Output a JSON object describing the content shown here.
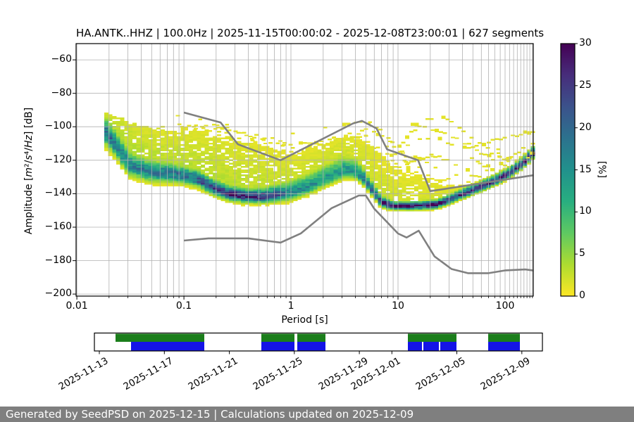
{
  "title": "HA.ANTK..HHZ | 100.0Hz | 2025-11-15T00:00:02 - 2025-12-08T23:00:01 | 627 segments",
  "footer": {
    "text": "Generated by SeedPSD on 2025-12-15 | Calculations updated on 2025-12-09",
    "bg": "#7f7f7f"
  },
  "chart_data": {
    "type": "heatmap",
    "title": "HA.ANTK..HHZ | 100.0Hz | 2025-11-15T00:00:02 - 2025-12-08T23:00:01 | 627 segments",
    "xlabel": "Period [s]",
    "ylabel": "Amplitude [m2/s4/Hz] [dB]",
    "ylabel_html": "Amplitude [<i>m</i>²/<i>s</i>⁴/<i>Hz</i>] [dB]",
    "x_scale": "log",
    "xlim": [
      0.0099,
      183
    ],
    "ylim": [
      -201.2,
      -50.3
    ],
    "grid": true,
    "grid_color": "#b0b0b0",
    "x_ticks": [
      {
        "label": "0.01",
        "value": 0.01
      },
      {
        "label": "0.1",
        "value": 0.1
      },
      {
        "label": "1",
        "value": 1
      },
      {
        "label": "10",
        "value": 10
      },
      {
        "label": "100",
        "value": 100
      }
    ],
    "y_ticks": [
      {
        "label": "−60",
        "value": -60
      },
      {
        "label": "−80",
        "value": -80
      },
      {
        "label": "−100",
        "value": -100
      },
      {
        "label": "−120",
        "value": -120
      },
      {
        "label": "−140",
        "value": -140
      },
      {
        "label": "−160",
        "value": -160
      },
      {
        "label": "−180",
        "value": -180
      },
      {
        "label": "−200",
        "value": -200
      }
    ],
    "colorbar": {
      "label": "[%]",
      "min": 0,
      "max": 30,
      "ticks": [
        {
          "label": "0",
          "value": 0
        },
        {
          "label": "5",
          "value": 5
        },
        {
          "label": "10",
          "value": 10
        },
        {
          "label": "15",
          "value": 15
        },
        {
          "label": "20",
          "value": 20
        },
        {
          "label": "25",
          "value": 25
        },
        {
          "label": "30",
          "value": 30
        }
      ],
      "colormap": "viridis_r"
    },
    "psd_mode_curve": [
      [
        0.018,
        -104
      ],
      [
        0.022,
        -111
      ],
      [
        0.03,
        -123
      ],
      [
        0.045,
        -127
      ],
      [
        0.07,
        -128
      ],
      [
        0.1,
        -129.5
      ],
      [
        0.13,
        -131.5
      ],
      [
        0.18,
        -136.5
      ],
      [
        0.25,
        -140
      ],
      [
        0.35,
        -141.5
      ],
      [
        0.5,
        -142
      ],
      [
        0.7,
        -141
      ],
      [
        0.9,
        -140
      ],
      [
        1.2,
        -137.5
      ],
      [
        1.7,
        -133.5
      ],
      [
        2.3,
        -129.5
      ],
      [
        3.0,
        -126.5
      ],
      [
        3.8,
        -127
      ],
      [
        4.5,
        -130.5
      ],
      [
        5.5,
        -138
      ],
      [
        6.5,
        -144
      ],
      [
        7.5,
        -146.5
      ],
      [
        9,
        -147.5
      ],
      [
        13,
        -147.5
      ],
      [
        18,
        -147
      ],
      [
        22,
        -146.5
      ],
      [
        28,
        -144
      ],
      [
        36,
        -141
      ],
      [
        48,
        -138
      ],
      [
        65,
        -134.5
      ],
      [
        85,
        -131
      ],
      [
        110,
        -127
      ],
      [
        140,
        -122
      ],
      [
        165,
        -117.5
      ],
      [
        183,
        -114
      ]
    ],
    "psd_upper_envelope": [
      [
        0.018,
        -92
      ],
      [
        0.022,
        -94
      ],
      [
        0.03,
        -98
      ],
      [
        0.05,
        -102
      ],
      [
        0.08,
        -104.5
      ],
      [
        0.12,
        -103.5
      ],
      [
        0.2,
        -106
      ],
      [
        0.3,
        -108.5
      ],
      [
        0.45,
        -111.5
      ],
      [
        0.7,
        -114.5
      ],
      [
        1.0,
        -116.5
      ],
      [
        1.5,
        -113.5
      ],
      [
        2.2,
        -109.5
      ],
      [
        3.0,
        -107
      ],
      [
        4.2,
        -107.5
      ],
      [
        5,
        -109.5
      ],
      [
        6,
        -113
      ],
      [
        7,
        -119
      ],
      [
        8.5,
        -124
      ],
      [
        11,
        -127
      ],
      [
        15,
        -128
      ],
      [
        19,
        -129.5
      ],
      [
        25,
        -132
      ],
      [
        35,
        -134
      ],
      [
        50,
        -132
      ],
      [
        70,
        -128.5
      ],
      [
        95,
        -125
      ],
      [
        120,
        -121
      ],
      [
        150,
        -116
      ],
      [
        183,
        -109
      ]
    ],
    "psd_peak_percent": [
      [
        0.018,
        20
      ],
      [
        0.03,
        17
      ],
      [
        0.06,
        18
      ],
      [
        0.1,
        19
      ],
      [
        0.15,
        23
      ],
      [
        0.25,
        27
      ],
      [
        0.5,
        27
      ],
      [
        0.7,
        22
      ],
      [
        0.9,
        17
      ],
      [
        1.5,
        15
      ],
      [
        2.5,
        14
      ],
      [
        3.2,
        14
      ],
      [
        4,
        15
      ],
      [
        5,
        18
      ],
      [
        6,
        23
      ],
      [
        7.5,
        28
      ],
      [
        9,
        30
      ],
      [
        16,
        30
      ],
      [
        22,
        28
      ],
      [
        30,
        26
      ],
      [
        60,
        26
      ],
      [
        120,
        27
      ],
      [
        183,
        28
      ]
    ],
    "core_sigma_up_db": [
      [
        0.018,
        5
      ],
      [
        0.05,
        4
      ],
      [
        0.15,
        3
      ],
      [
        0.4,
        2.5
      ],
      [
        0.9,
        4
      ],
      [
        2,
        5
      ],
      [
        3.5,
        5
      ],
      [
        5,
        3
      ],
      [
        7,
        2
      ],
      [
        9,
        1.4
      ],
      [
        20,
        1.5
      ],
      [
        40,
        1.8
      ],
      [
        183,
        2
      ]
    ],
    "core_sigma_down_db": [
      [
        0.018,
        4
      ],
      [
        0.05,
        3.2
      ],
      [
        0.15,
        2.4
      ],
      [
        0.5,
        2
      ],
      [
        1,
        2.5
      ],
      [
        3,
        2.5
      ],
      [
        6,
        1.8
      ],
      [
        9,
        1.2
      ],
      [
        20,
        1.3
      ],
      [
        183,
        1.6
      ]
    ],
    "tail_percent": [
      [
        0.018,
        5
      ],
      [
        0.05,
        4
      ],
      [
        0.3,
        3.5
      ],
      [
        1,
        3
      ],
      [
        3,
        3.5
      ],
      [
        6,
        2.8
      ],
      [
        10,
        2.5
      ],
      [
        20,
        2.2
      ],
      [
        40,
        1.8
      ],
      [
        100,
        1.4
      ],
      [
        183,
        2.2
      ]
    ],
    "outlier_strands": [
      [
        [
          9,
          -116
        ],
        [
          13,
          -103
        ],
        [
          17,
          -96.5
        ],
        [
          22,
          -94
        ],
        [
          27,
          -95.5
        ],
        [
          35,
          -100
        ],
        [
          50,
          -108
        ],
        [
          75,
          -116
        ],
        [
          110,
          -121
        ],
        [
          150,
          -119
        ],
        [
          183,
          -115
        ]
      ],
      [
        [
          7,
          -122
        ],
        [
          11,
          -112
        ],
        [
          16,
          -107
        ],
        [
          24,
          -107
        ],
        [
          33,
          -112
        ],
        [
          50,
          -120
        ],
        [
          80,
          -127
        ]
      ],
      [
        [
          9,
          -126
        ],
        [
          14,
          -119
        ],
        [
          21,
          -117
        ],
        [
          30,
          -121
        ],
        [
          45,
          -128
        ],
        [
          60,
          -131
        ]
      ],
      [
        [
          2.2,
          -111
        ],
        [
          3.5,
          -104
        ],
        [
          5,
          -101
        ],
        [
          7,
          -106
        ],
        [
          10,
          -114
        ],
        [
          14,
          -122
        ]
      ],
      [
        [
          1.2,
          -114
        ],
        [
          2,
          -108
        ],
        [
          3.2,
          -106
        ],
        [
          4.5,
          -108
        ],
        [
          6.5,
          -114
        ]
      ],
      [
        [
          0.35,
          -103
        ],
        [
          0.6,
          -107
        ],
        [
          1,
          -112
        ],
        [
          1.6,
          -109
        ],
        [
          2.5,
          -112
        ],
        [
          4,
          -117
        ]
      ],
      [
        [
          0.1,
          -101
        ],
        [
          0.18,
          -99
        ],
        [
          0.3,
          -103
        ],
        [
          0.5,
          -107
        ],
        [
          0.8,
          -111
        ]
      ],
      [
        [
          40,
          -113
        ],
        [
          70,
          -109
        ],
        [
          110,
          -105.5
        ],
        [
          155,
          -103.5
        ],
        [
          183,
          -104
        ]
      ],
      [
        [
          12,
          -99
        ],
        [
          18,
          -101
        ],
        [
          28,
          -104
        ],
        [
          45,
          -111
        ],
        [
          70,
          -119
        ],
        [
          100,
          -124
        ]
      ],
      [
        [
          3,
          -99
        ],
        [
          4.5,
          -97
        ],
        [
          6,
          -100
        ],
        [
          8,
          -107
        ],
        [
          11,
          -116
        ]
      ],
      [
        [
          100,
          -119
        ],
        [
          130,
          -115
        ],
        [
          160,
          -111
        ],
        [
          183,
          -108
        ]
      ]
    ],
    "noise_model_high": [
      [
        0.1,
        -91.5
      ],
      [
        0.22,
        -97.4
      ],
      [
        0.32,
        -110.5
      ],
      [
        0.8,
        -120
      ],
      [
        3.8,
        -98
      ],
      [
        4.6,
        -96.5
      ],
      [
        6.3,
        -101
      ],
      [
        7.9,
        -113.5
      ],
      [
        15.4,
        -120
      ],
      [
        20,
        -138.5
      ],
      [
        183,
        -129
      ]
    ],
    "noise_model_low": [
      [
        0.1,
        -168
      ],
      [
        0.17,
        -166.7
      ],
      [
        0.4,
        -166.7
      ],
      [
        0.8,
        -169.2
      ],
      [
        1.24,
        -163.7
      ],
      [
        2.4,
        -148.6
      ],
      [
        4.3,
        -141.1
      ],
      [
        5,
        -141.1
      ],
      [
        6,
        -149
      ],
      [
        10,
        -163.8
      ],
      [
        12,
        -166.2
      ],
      [
        15.6,
        -162.1
      ],
      [
        21.9,
        -177.5
      ],
      [
        31.6,
        -185
      ],
      [
        45,
        -187.5
      ],
      [
        70,
        -187.5
      ],
      [
        101,
        -185.8
      ],
      [
        154,
        -185.25
      ],
      [
        183,
        -185.9
      ]
    ],
    "noise_model_color": "#808080"
  },
  "timeline": {
    "tick_labels": [
      {
        "label": "2025-11-13",
        "day": 0
      },
      {
        "label": "2025-11-17",
        "day": 4
      },
      {
        "label": "2025-11-21",
        "day": 8
      },
      {
        "label": "2025-11-25",
        "day": 12
      },
      {
        "label": "2025-11-29",
        "day": 16
      },
      {
        "label": "2025-12-01",
        "day": 18
      },
      {
        "label": "2025-12-05",
        "day": 22
      },
      {
        "label": "2025-12-09",
        "day": 26
      }
    ],
    "green_segments_days": [
      [
        1.0,
        6.46
      ],
      [
        9.97,
        12.01
      ],
      [
        12.18,
        13.91
      ],
      [
        18.99,
        21.97
      ],
      [
        23.93,
        25.88
      ]
    ],
    "blue_segments_days": [
      [
        1.95,
        6.46
      ],
      [
        9.97,
        12.01
      ],
      [
        12.18,
        13.91
      ],
      [
        18.99,
        19.86
      ],
      [
        19.93,
        20.9
      ],
      [
        20.97,
        21.97
      ],
      [
        23.93,
        25.88
      ]
    ],
    "colors": {
      "green": "#1b7e1b",
      "blue": "#1414e6"
    }
  }
}
